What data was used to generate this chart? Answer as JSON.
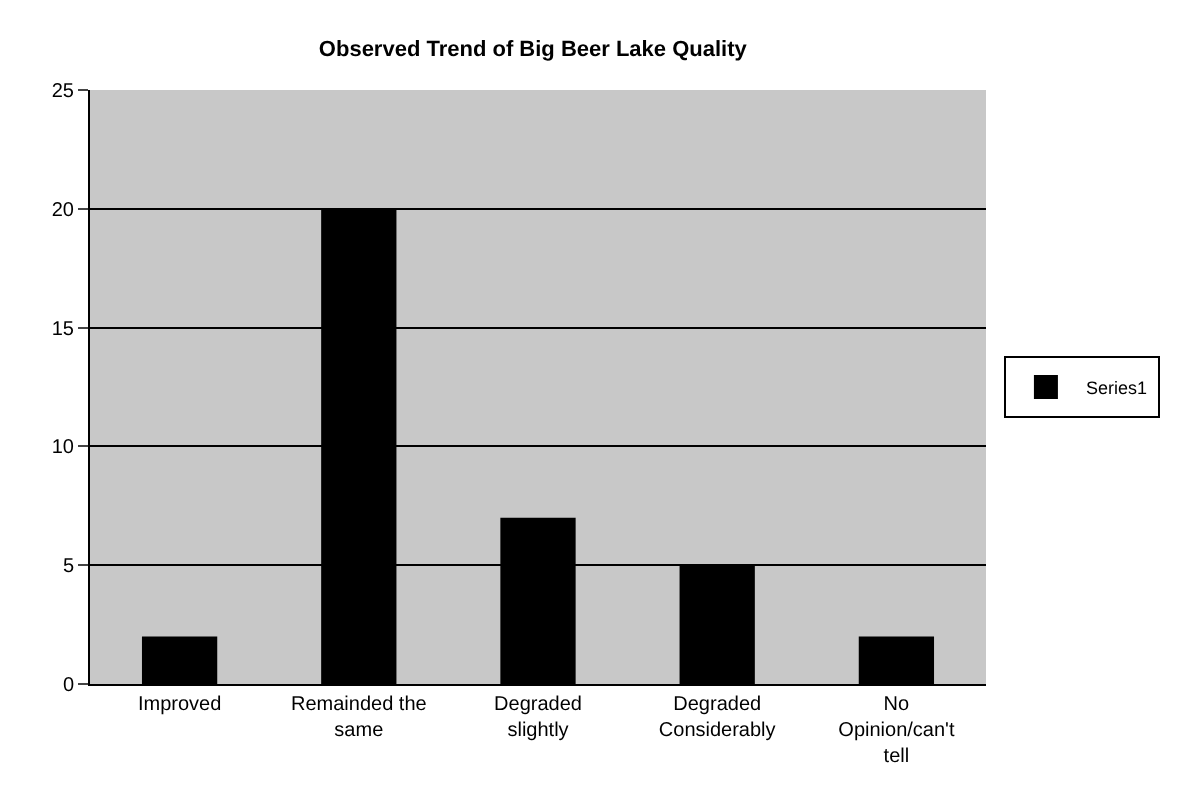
{
  "chart_data": {
    "type": "bar",
    "title": "Observed Trend of Big Beer Lake Quality",
    "categories": [
      "Improved",
      "Remainded the same",
      "Degraded slightly",
      "Degraded Considerably",
      "No Opinion/can't tell"
    ],
    "series": [
      {
        "name": "Series1",
        "color": "#000000",
        "values": [
          2,
          20,
          7,
          5,
          2
        ]
      }
    ],
    "ylim": [
      0,
      25
    ],
    "yticks": [
      0,
      5,
      10,
      15,
      20,
      25
    ],
    "grid": "y",
    "legend": "right"
  }
}
